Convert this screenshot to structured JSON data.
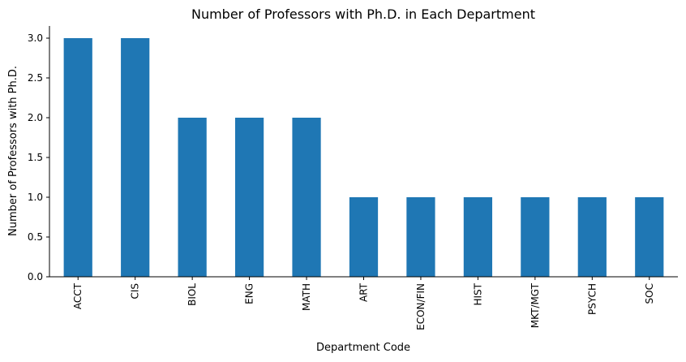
{
  "chart_data": {
    "type": "bar",
    "title": "Number of Professors with Ph.D. in Each Department",
    "xlabel": "Department Code",
    "ylabel": "Number of Professors with Ph.D.",
    "categories": [
      "ACCT",
      "CIS",
      "BIOL",
      "ENG",
      "MATH",
      "ART",
      "ECON/FIN",
      "HIST",
      "MKT/MGT",
      "PSYCH",
      "SOC"
    ],
    "values": [
      3,
      3,
      2,
      2,
      2,
      1,
      1,
      1,
      1,
      1,
      1
    ],
    "ylim": [
      0,
      3.15
    ],
    "yticks": [
      "0.0",
      "0.5",
      "1.0",
      "1.5",
      "2.0",
      "2.5",
      "3.0"
    ],
    "grid": false,
    "legend": "none",
    "bar_color": "#1f77b4"
  }
}
